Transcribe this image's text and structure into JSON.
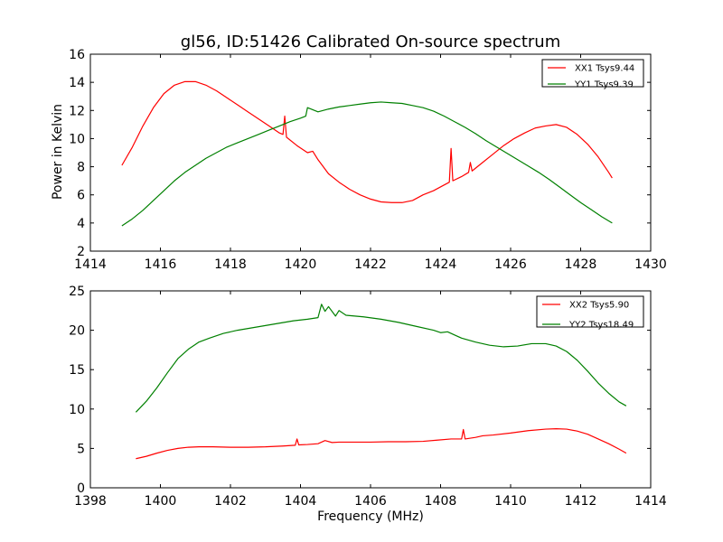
{
  "figure": {
    "title": "gl56, ID:51426 Calibrated On-source spectrum"
  },
  "chart_data": [
    {
      "type": "line",
      "title": "gl56, ID:51426 Calibrated On-source spectrum",
      "xlabel": "",
      "ylabel": "Power in Kelvin",
      "xlim": [
        1414,
        1430
      ],
      "ylim": [
        2,
        16
      ],
      "xticks": [
        1414,
        1416,
        1418,
        1420,
        1422,
        1424,
        1426,
        1428,
        1430
      ],
      "yticks": [
        2,
        4,
        6,
        8,
        10,
        12,
        14,
        16
      ],
      "grid": false,
      "legend_position": "top-right",
      "series": [
        {
          "name": "XX1 Tsys9.44",
          "color": "#ff0000",
          "x": [
            1414.9,
            1415.2,
            1415.5,
            1415.8,
            1416.1,
            1416.4,
            1416.7,
            1417.0,
            1417.3,
            1417.6,
            1417.9,
            1418.2,
            1418.5,
            1418.8,
            1419.1,
            1419.4,
            1419.5,
            1419.55,
            1419.6,
            1419.9,
            1420.2,
            1420.35,
            1420.5,
            1420.8,
            1421.1,
            1421.4,
            1421.7,
            1422.0,
            1422.3,
            1422.6,
            1422.9,
            1423.2,
            1423.5,
            1423.8,
            1424.1,
            1424.25,
            1424.3,
            1424.35,
            1424.6,
            1424.8,
            1424.85,
            1424.9,
            1425.2,
            1425.5,
            1425.8,
            1426.1,
            1426.4,
            1426.7,
            1427.0,
            1427.3,
            1427.6,
            1427.9,
            1428.2,
            1428.5,
            1428.8,
            1428.9
          ],
          "y": [
            8.1,
            9.4,
            10.9,
            12.2,
            13.2,
            13.8,
            14.05,
            14.05,
            13.8,
            13.4,
            12.9,
            12.4,
            11.9,
            11.4,
            10.9,
            10.4,
            10.3,
            11.6,
            10.1,
            9.5,
            9.0,
            9.1,
            8.5,
            7.5,
            6.9,
            6.4,
            6.0,
            5.7,
            5.5,
            5.45,
            5.45,
            5.6,
            6.0,
            6.3,
            6.7,
            6.9,
            9.3,
            7.0,
            7.3,
            7.6,
            8.3,
            7.7,
            8.3,
            8.9,
            9.5,
            10.0,
            10.4,
            10.75,
            10.9,
            11.0,
            10.8,
            10.3,
            9.6,
            8.7,
            7.6,
            7.2
          ]
        },
        {
          "name": "YY1 Tsys9.39",
          "color": "#008000",
          "x": [
            1414.9,
            1415.2,
            1415.5,
            1415.8,
            1416.1,
            1416.4,
            1416.7,
            1417.0,
            1417.3,
            1417.6,
            1417.9,
            1418.2,
            1418.5,
            1418.8,
            1419.1,
            1419.4,
            1419.7,
            1420.0,
            1420.15,
            1420.2,
            1420.3,
            1420.5,
            1420.8,
            1421.1,
            1421.4,
            1421.7,
            1422.0,
            1422.3,
            1422.6,
            1422.9,
            1423.2,
            1423.5,
            1423.8,
            1424.1,
            1424.4,
            1424.7,
            1425.0,
            1425.3,
            1425.6,
            1425.9,
            1426.2,
            1426.5,
            1426.8,
            1427.1,
            1427.4,
            1427.7,
            1428.0,
            1428.3,
            1428.6,
            1428.9
          ],
          "y": [
            3.8,
            4.3,
            4.9,
            5.6,
            6.3,
            7.0,
            7.6,
            8.1,
            8.6,
            9.0,
            9.4,
            9.7,
            10.0,
            10.3,
            10.6,
            10.9,
            11.2,
            11.45,
            11.6,
            12.2,
            12.1,
            11.9,
            12.1,
            12.25,
            12.35,
            12.45,
            12.55,
            12.6,
            12.55,
            12.5,
            12.35,
            12.2,
            11.95,
            11.6,
            11.2,
            10.8,
            10.35,
            9.85,
            9.4,
            8.95,
            8.5,
            8.05,
            7.6,
            7.1,
            6.55,
            6.0,
            5.45,
            4.95,
            4.45,
            4.0
          ]
        }
      ]
    },
    {
      "type": "line",
      "title": "",
      "xlabel": "Frequency (MHz)",
      "ylabel": "",
      "xlim": [
        1398,
        1414
      ],
      "ylim": [
        0,
        25
      ],
      "xticks": [
        1398,
        1400,
        1402,
        1404,
        1406,
        1408,
        1410,
        1412,
        1414
      ],
      "yticks": [
        0,
        5,
        10,
        15,
        20,
        25
      ],
      "grid": false,
      "legend_position": "top-right",
      "series": [
        {
          "name": "XX2 Tsys5.90",
          "color": "#ff0000",
          "x": [
            1399.3,
            1399.6,
            1399.9,
            1400.2,
            1400.5,
            1400.8,
            1401.1,
            1401.5,
            1402.0,
            1402.5,
            1403.0,
            1403.5,
            1403.85,
            1403.9,
            1403.95,
            1404.2,
            1404.5,
            1404.7,
            1404.9,
            1405.1,
            1405.5,
            1406.0,
            1406.5,
            1407.0,
            1407.5,
            1407.9,
            1408.3,
            1408.6,
            1408.65,
            1408.7,
            1409.0,
            1409.2,
            1409.5,
            1410.0,
            1410.5,
            1411.0,
            1411.3,
            1411.6,
            1411.9,
            1412.2,
            1412.5,
            1412.8,
            1413.1,
            1413.3
          ],
          "y": [
            3.7,
            4.0,
            4.4,
            4.75,
            5.0,
            5.15,
            5.2,
            5.2,
            5.15,
            5.15,
            5.2,
            5.3,
            5.4,
            6.2,
            5.45,
            5.5,
            5.6,
            6.0,
            5.75,
            5.8,
            5.8,
            5.8,
            5.85,
            5.85,
            5.9,
            6.05,
            6.2,
            6.2,
            7.4,
            6.2,
            6.4,
            6.6,
            6.7,
            6.95,
            7.25,
            7.45,
            7.5,
            7.45,
            7.2,
            6.8,
            6.2,
            5.6,
            4.9,
            4.4
          ]
        },
        {
          "name": "YY2 Tsys18.49",
          "color": "#008000",
          "x": [
            1399.3,
            1399.6,
            1399.9,
            1400.2,
            1400.5,
            1400.8,
            1401.1,
            1401.4,
            1401.8,
            1402.2,
            1402.6,
            1403.0,
            1403.4,
            1403.8,
            1404.2,
            1404.5,
            1404.6,
            1404.7,
            1404.8,
            1405.0,
            1405.1,
            1405.3,
            1405.8,
            1406.3,
            1406.8,
            1407.3,
            1407.8,
            1408.0,
            1408.2,
            1408.6,
            1409.0,
            1409.4,
            1409.8,
            1410.2,
            1410.6,
            1411.0,
            1411.3,
            1411.6,
            1411.9,
            1412.2,
            1412.5,
            1412.8,
            1413.1,
            1413.3
          ],
          "y": [
            9.6,
            11.0,
            12.7,
            14.6,
            16.4,
            17.6,
            18.5,
            19.0,
            19.6,
            20.0,
            20.3,
            20.6,
            20.9,
            21.2,
            21.4,
            21.6,
            23.3,
            22.4,
            23.0,
            21.8,
            22.5,
            21.9,
            21.7,
            21.4,
            21.0,
            20.5,
            20.0,
            19.7,
            19.8,
            19.0,
            18.5,
            18.1,
            17.9,
            18.0,
            18.3,
            18.3,
            18.0,
            17.3,
            16.2,
            14.8,
            13.3,
            12.0,
            10.9,
            10.4
          ]
        }
      ]
    }
  ]
}
